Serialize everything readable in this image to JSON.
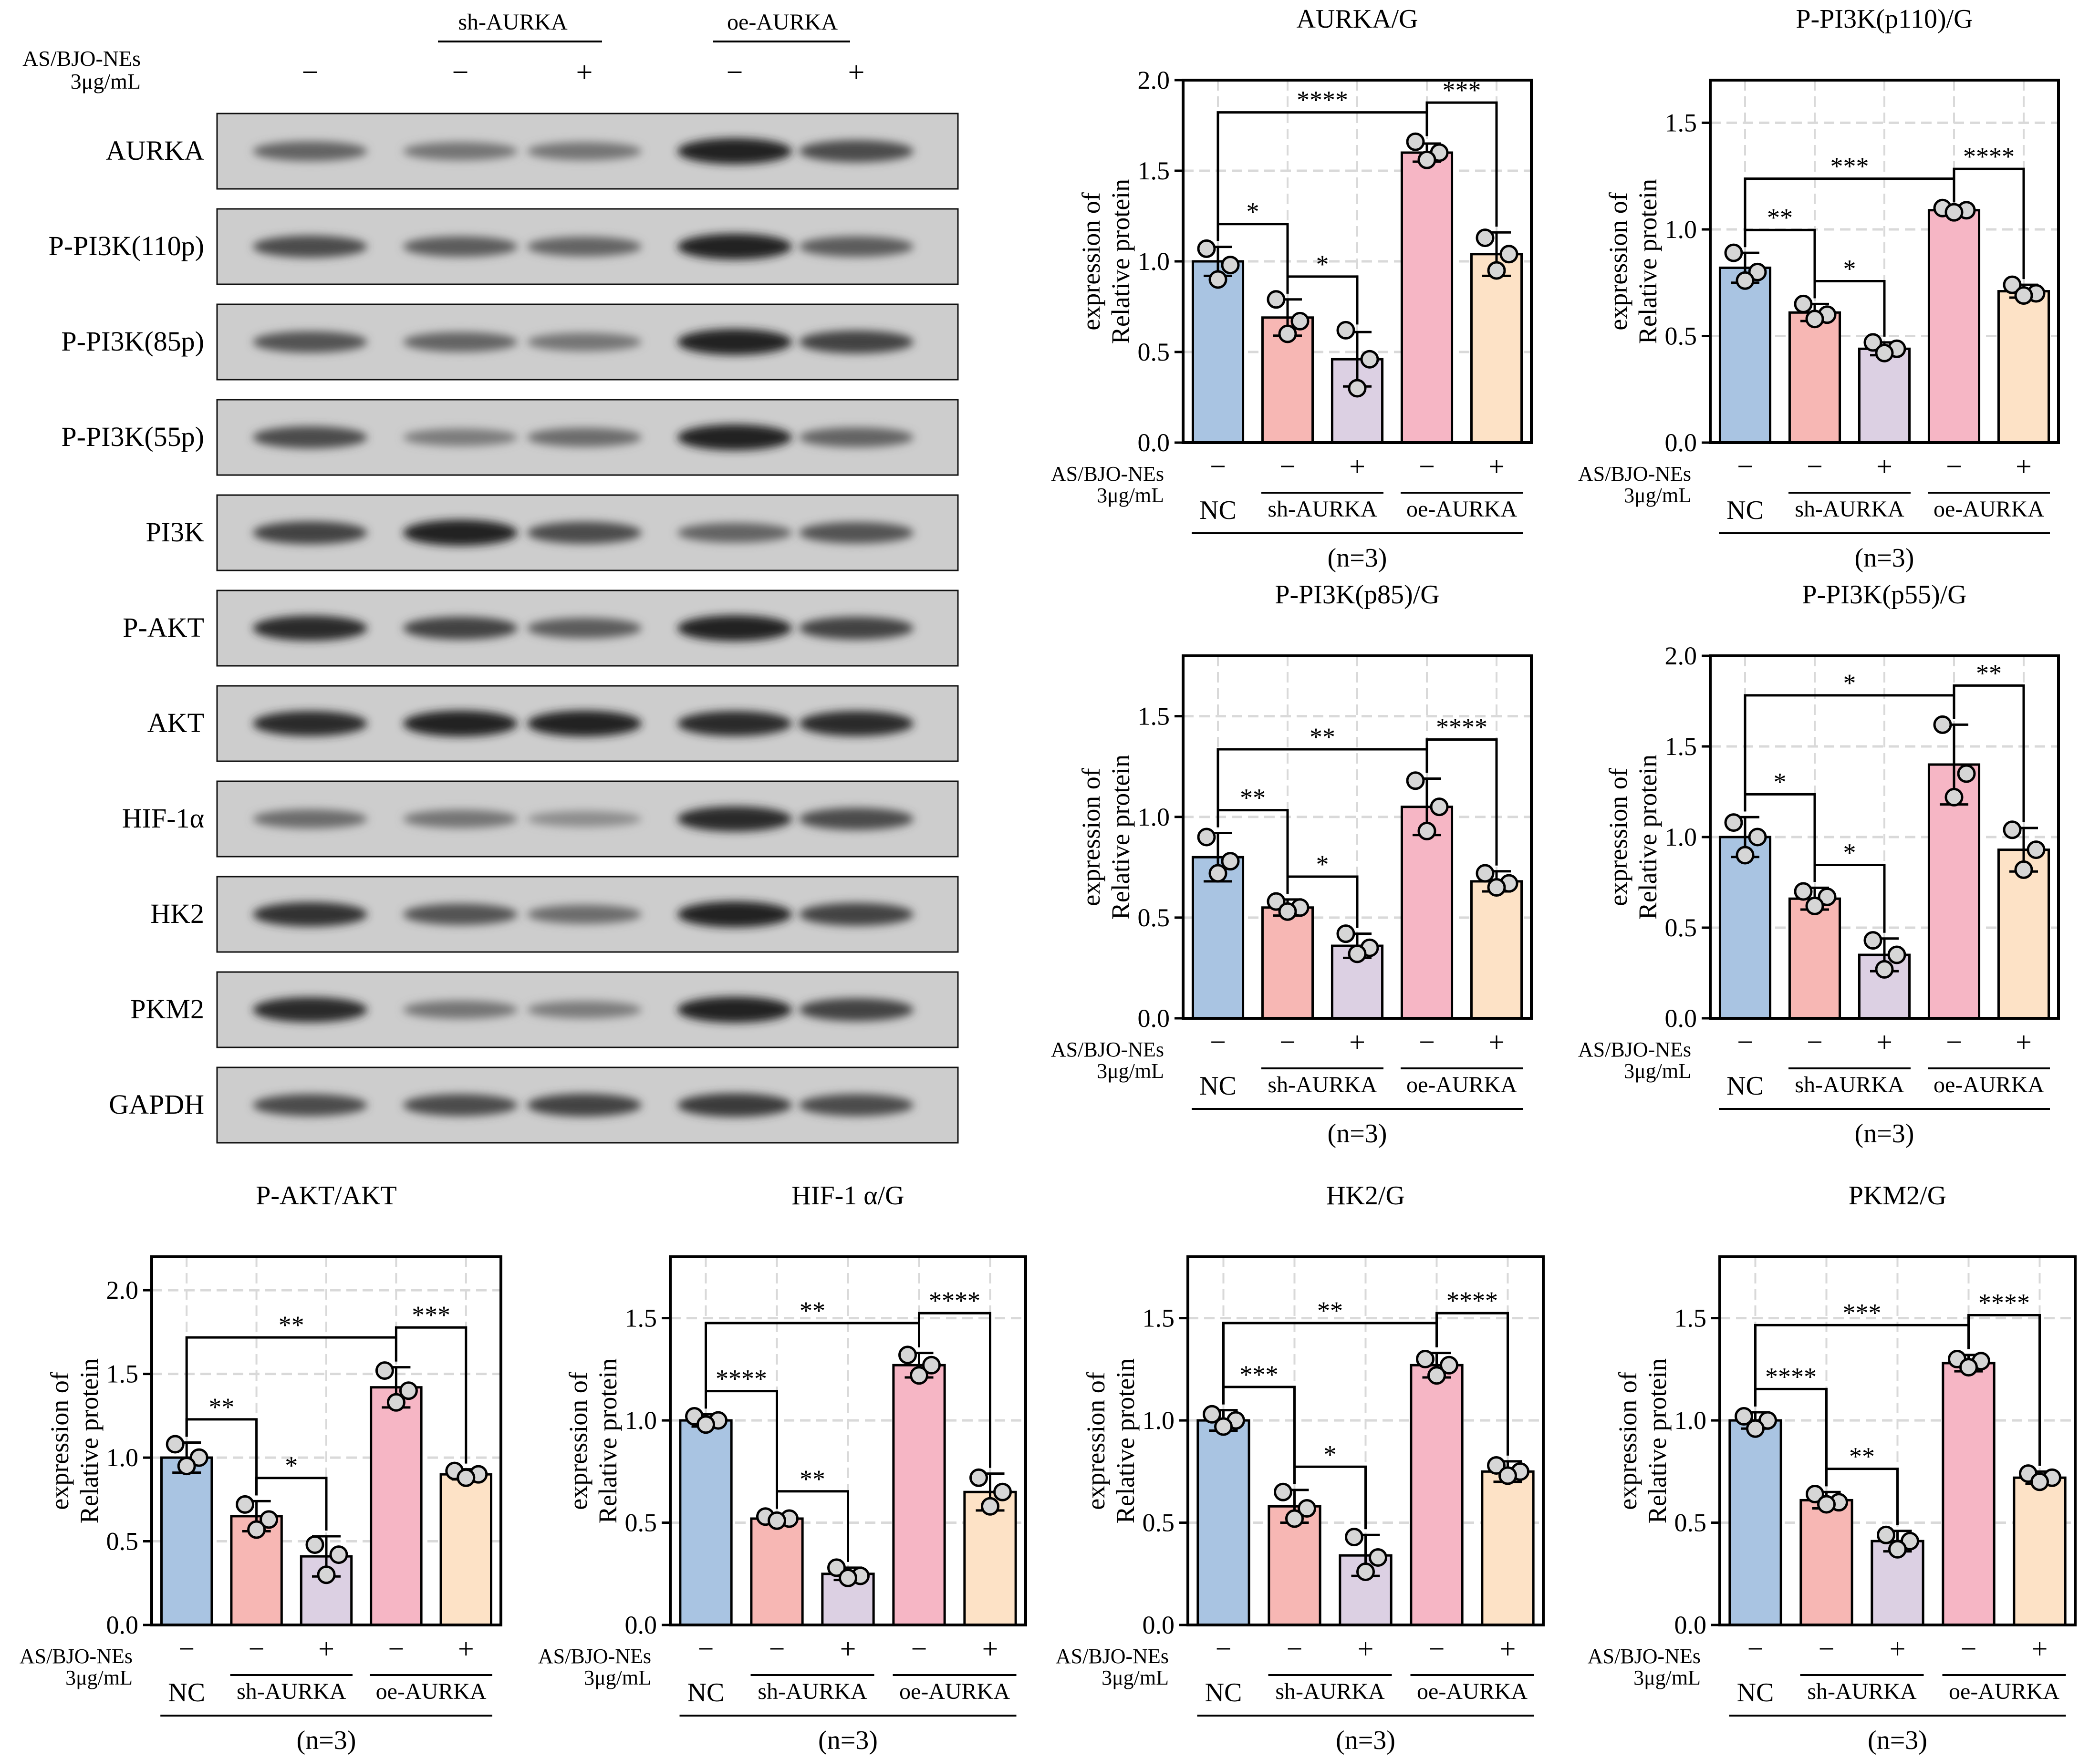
{
  "western_blot": {
    "treatment_label_line1": "AS/BJO-NEs",
    "treatment_label_line2": "3μg/mL",
    "group_headers": [
      "sh-AURKA",
      "oe-AURKA"
    ],
    "lane_signs": [
      "−",
      "−",
      "+",
      "−",
      "+"
    ],
    "bands": [
      {
        "label": "AURKA",
        "intensity": [
          0.55,
          0.45,
          0.45,
          0.95,
          0.7
        ]
      },
      {
        "label": "P-PI3K(110p)",
        "intensity": [
          0.7,
          0.6,
          0.55,
          0.95,
          0.6
        ]
      },
      {
        "label": "P-PI3K(85p)",
        "intensity": [
          0.65,
          0.55,
          0.45,
          0.95,
          0.75
        ]
      },
      {
        "label": "P-PI3K(55p)",
        "intensity": [
          0.7,
          0.4,
          0.5,
          0.95,
          0.55
        ]
      },
      {
        "label": "PI3K",
        "intensity": [
          0.75,
          0.95,
          0.7,
          0.55,
          0.65
        ]
      },
      {
        "label": "P-AKT",
        "intensity": [
          0.9,
          0.75,
          0.6,
          0.95,
          0.75
        ]
      },
      {
        "label": "AKT",
        "intensity": [
          0.9,
          0.95,
          0.95,
          0.9,
          0.9
        ]
      },
      {
        "label": "HIF-1α",
        "intensity": [
          0.5,
          0.45,
          0.3,
          0.9,
          0.7
        ]
      },
      {
        "label": "HK2",
        "intensity": [
          0.85,
          0.65,
          0.5,
          0.95,
          0.75
        ]
      },
      {
        "label": "PKM2",
        "intensity": [
          0.9,
          0.45,
          0.4,
          0.95,
          0.75
        ]
      },
      {
        "label": "GAPDH",
        "intensity": [
          0.7,
          0.7,
          0.75,
          0.8,
          0.7
        ]
      }
    ]
  },
  "colors": {
    "bars": [
      "#a9c4e2",
      "#f7b7b4",
      "#dcd0e3",
      "#f6b6c5",
      "#fde2c6"
    ],
    "grid": "#d9d9d9",
    "axis": "#000000"
  },
  "chart_data": [
    {
      "type": "bar",
      "title": "AURKA/G",
      "ylabel_line1": "expression of",
      "ylabel_line2": "Relative protein",
      "ylim": [
        0,
        2.0
      ],
      "yticks": [
        0.0,
        0.5,
        1.0,
        1.5,
        2.0
      ],
      "ytick_labels": [
        "0.0",
        "0.5",
        "1.0",
        "1.5",
        "2.0"
      ],
      "treatment_label_line1": "AS/BJO-NEs",
      "treatment_label_line2": "3μg/mL",
      "treatment_signs": [
        "−",
        "−",
        "+",
        "−",
        "+"
      ],
      "group_labels": [
        "NC",
        "sh-AURKA",
        "oe-AURKA"
      ],
      "n_label": "(n=3)",
      "values": [
        1.0,
        0.69,
        0.46,
        1.6,
        1.04
      ],
      "errors": [
        0.08,
        0.1,
        0.15,
        0.05,
        0.12
      ],
      "points": [
        [
          1.07,
          0.98,
          0.9
        ],
        [
          0.79,
          0.67,
          0.6
        ],
        [
          0.62,
          0.46,
          0.3
        ],
        [
          1.66,
          1.6,
          1.56
        ],
        [
          1.13,
          1.04,
          0.95
        ]
      ],
      "significance": [
        {
          "from": 0,
          "to": 1,
          "label": "*"
        },
        {
          "from": 1,
          "to": 2,
          "label": "*"
        },
        {
          "from": 0,
          "to": 3,
          "label": "****"
        },
        {
          "from": 3,
          "to": 4,
          "label": "***"
        }
      ]
    },
    {
      "type": "bar",
      "title": "P-PI3K(p110)/G",
      "ylabel_line1": "expression of",
      "ylabel_line2": "Relative protein",
      "ylim": [
        0,
        1.7
      ],
      "yticks": [
        0.0,
        0.5,
        1.0,
        1.5
      ],
      "ytick_labels": [
        "0.0",
        "0.5",
        "1.0",
        "1.5"
      ],
      "treatment_label_line1": "AS/BJO-NEs",
      "treatment_label_line2": "3μg/mL",
      "treatment_signs": [
        "−",
        "−",
        "+",
        "−",
        "+"
      ],
      "group_labels": [
        "NC",
        "sh-AURKA",
        "oe-AURKA"
      ],
      "n_label": "(n=3)",
      "values": [
        0.82,
        0.61,
        0.44,
        1.09,
        0.71
      ],
      "errors": [
        0.07,
        0.04,
        0.03,
        0.01,
        0.03
      ],
      "points": [
        [
          0.89,
          0.8,
          0.76
        ],
        [
          0.65,
          0.6,
          0.58
        ],
        [
          0.47,
          0.44,
          0.42
        ],
        [
          1.1,
          1.09,
          1.08
        ],
        [
          0.74,
          0.7,
          0.69
        ]
      ],
      "significance": [
        {
          "from": 0,
          "to": 1,
          "label": "**"
        },
        {
          "from": 1,
          "to": 2,
          "label": "*"
        },
        {
          "from": 0,
          "to": 3,
          "label": "***"
        },
        {
          "from": 3,
          "to": 4,
          "label": "****"
        }
      ]
    },
    {
      "type": "bar",
      "title": "P-PI3K(p85)/G",
      "ylabel_line1": "expression of",
      "ylabel_line2": "Relative protein",
      "ylim": [
        0,
        1.8
      ],
      "yticks": [
        0.0,
        0.5,
        1.0,
        1.5
      ],
      "ytick_labels": [
        "0.0",
        "0.5",
        "1.0",
        "1.5"
      ],
      "treatment_label_line1": "AS/BJO-NEs",
      "treatment_label_line2": "3μg/mL",
      "treatment_signs": [
        "−",
        "−",
        "+",
        "−",
        "+"
      ],
      "group_labels": [
        "NC",
        "sh-AURKA",
        "oe-AURKA"
      ],
      "n_label": "(n=3)",
      "values": [
        0.8,
        0.55,
        0.36,
        1.05,
        0.68
      ],
      "errors": [
        0.12,
        0.04,
        0.06,
        0.14,
        0.05
      ],
      "points": [
        [
          0.9,
          0.78,
          0.72
        ],
        [
          0.58,
          0.55,
          0.53
        ],
        [
          0.42,
          0.35,
          0.32
        ],
        [
          1.18,
          1.05,
          0.93
        ],
        [
          0.72,
          0.67,
          0.65
        ]
      ],
      "significance": [
        {
          "from": 0,
          "to": 1,
          "label": "**"
        },
        {
          "from": 1,
          "to": 2,
          "label": "*"
        },
        {
          "from": 0,
          "to": 3,
          "label": "**"
        },
        {
          "from": 3,
          "to": 4,
          "label": "****"
        }
      ]
    },
    {
      "type": "bar",
      "title": "P-PI3K(p55)/G",
      "ylabel_line1": "expression of",
      "ylabel_line2": "Relative protein",
      "ylim": [
        0,
        2.0
      ],
      "yticks": [
        0.0,
        0.5,
        1.0,
        1.5,
        2.0
      ],
      "ytick_labels": [
        "0.0",
        "0.5",
        "1.0",
        "1.5",
        "2.0"
      ],
      "treatment_label_line1": "AS/BJO-NEs",
      "treatment_label_line2": "3μg/mL",
      "treatment_signs": [
        "−",
        "−",
        "+",
        "−",
        "+"
      ],
      "group_labels": [
        "NC",
        "sh-AURKA",
        "oe-AURKA"
      ],
      "n_label": "(n=3)",
      "values": [
        1.0,
        0.66,
        0.35,
        1.4,
        0.93
      ],
      "errors": [
        0.11,
        0.06,
        0.09,
        0.22,
        0.12
      ],
      "points": [
        [
          1.08,
          1.0,
          0.9
        ],
        [
          0.7,
          0.67,
          0.62
        ],
        [
          0.43,
          0.35,
          0.27
        ],
        [
          1.62,
          1.35,
          1.22
        ],
        [
          1.04,
          0.93,
          0.82
        ]
      ],
      "significance": [
        {
          "from": 0,
          "to": 1,
          "label": "*"
        },
        {
          "from": 1,
          "to": 2,
          "label": "*"
        },
        {
          "from": 0,
          "to": 3,
          "label": "*"
        },
        {
          "from": 3,
          "to": 4,
          "label": "**"
        }
      ]
    },
    {
      "type": "bar",
      "title": "P-AKT/AKT",
      "ylabel_line1": "expression of",
      "ylabel_line2": "Relative protein",
      "ylim": [
        0,
        2.2
      ],
      "yticks": [
        0.0,
        0.5,
        1.0,
        1.5,
        2.0
      ],
      "ytick_labels": [
        "0.0",
        "0.5",
        "1.0",
        "1.5",
        "2.0"
      ],
      "treatment_label_line1": "AS/BJO-NEs",
      "treatment_label_line2": "3μg/mL",
      "treatment_signs": [
        "−",
        "−",
        "+",
        "−",
        "+"
      ],
      "group_labels": [
        "NC",
        "sh-AURKA",
        "oe-AURKA"
      ],
      "n_label": "(n=3)",
      "values": [
        1.0,
        0.65,
        0.41,
        1.42,
        0.9
      ],
      "errors": [
        0.09,
        0.09,
        0.12,
        0.12,
        0.03
      ],
      "points": [
        [
          1.08,
          1.0,
          0.95
        ],
        [
          0.72,
          0.63,
          0.57
        ],
        [
          0.48,
          0.42,
          0.3
        ],
        [
          1.52,
          1.4,
          1.33
        ],
        [
          0.92,
          0.9,
          0.88
        ]
      ],
      "significance": [
        {
          "from": 0,
          "to": 1,
          "label": "**"
        },
        {
          "from": 1,
          "to": 2,
          "label": "*"
        },
        {
          "from": 0,
          "to": 3,
          "label": "**"
        },
        {
          "from": 3,
          "to": 4,
          "label": "***"
        }
      ]
    },
    {
      "type": "bar",
      "title": "HIF-1 α/G",
      "ylabel_line1": "expression of",
      "ylabel_line2": "Relative protein",
      "ylim": [
        0,
        1.8
      ],
      "yticks": [
        0.0,
        0.5,
        1.0,
        1.5
      ],
      "ytick_labels": [
        "0.0",
        "0.5",
        "1.0",
        "1.5"
      ],
      "treatment_label_line1": "AS/BJO-NEs",
      "treatment_label_line2": "3μg/mL",
      "treatment_signs": [
        "−",
        "−",
        "+",
        "−",
        "+"
      ],
      "group_labels": [
        "NC",
        "sh-AURKA",
        "oe-AURKA"
      ],
      "n_label": "(n=3)",
      "values": [
        1.0,
        0.52,
        0.25,
        1.27,
        0.65
      ],
      "errors": [
        0.03,
        0.02,
        0.03,
        0.06,
        0.09
      ],
      "points": [
        [
          1.02,
          1.0,
          0.98
        ],
        [
          0.53,
          0.52,
          0.51
        ],
        [
          0.28,
          0.24,
          0.23
        ],
        [
          1.32,
          1.27,
          1.22
        ],
        [
          0.72,
          0.65,
          0.58
        ]
      ],
      "significance": [
        {
          "from": 0,
          "to": 1,
          "label": "****"
        },
        {
          "from": 1,
          "to": 2,
          "label": "**"
        },
        {
          "from": 0,
          "to": 3,
          "label": "**"
        },
        {
          "from": 3,
          "to": 4,
          "label": "****"
        }
      ]
    },
    {
      "type": "bar",
      "title": "HK2/G",
      "ylabel_line1": "expression of",
      "ylabel_line2": "Relative protein",
      "ylim": [
        0,
        1.8
      ],
      "yticks": [
        0.0,
        0.5,
        1.0,
        1.5
      ],
      "ytick_labels": [
        "0.0",
        "0.5",
        "1.0",
        "1.5"
      ],
      "treatment_label_line1": "AS/BJO-NEs",
      "treatment_label_line2": "3μg/mL",
      "treatment_signs": [
        "−",
        "−",
        "+",
        "−",
        "+"
      ],
      "group_labels": [
        "NC",
        "sh-AURKA",
        "oe-AURKA"
      ],
      "n_label": "(n=3)",
      "values": [
        1.0,
        0.58,
        0.34,
        1.27,
        0.75
      ],
      "errors": [
        0.05,
        0.08,
        0.1,
        0.06,
        0.05
      ],
      "points": [
        [
          1.03,
          1.0,
          0.97
        ],
        [
          0.65,
          0.57,
          0.52
        ],
        [
          0.43,
          0.33,
          0.26
        ],
        [
          1.3,
          1.27,
          1.22
        ],
        [
          0.78,
          0.75,
          0.73
        ]
      ],
      "significance": [
        {
          "from": 0,
          "to": 1,
          "label": "***"
        },
        {
          "from": 1,
          "to": 2,
          "label": "*"
        },
        {
          "from": 0,
          "to": 3,
          "label": "**"
        },
        {
          "from": 3,
          "to": 4,
          "label": "****"
        }
      ]
    },
    {
      "type": "bar",
      "title": "PKM2/G",
      "ylabel_line1": "expression of",
      "ylabel_line2": "Relative protein",
      "ylim": [
        0,
        1.8
      ],
      "yticks": [
        0.0,
        0.5,
        1.0,
        1.5
      ],
      "ytick_labels": [
        "0.0",
        "0.5",
        "1.0",
        "1.5"
      ],
      "treatment_label_line1": "AS/BJO-NEs",
      "treatment_label_line2": "3μg/mL",
      "treatment_signs": [
        "−",
        "−",
        "+",
        "−",
        "+"
      ],
      "group_labels": [
        "NC",
        "sh-AURKA",
        "oe-AURKA"
      ],
      "n_label": "(n=3)",
      "values": [
        1.0,
        0.61,
        0.41,
        1.28,
        0.72
      ],
      "errors": [
        0.04,
        0.04,
        0.05,
        0.04,
        0.03
      ],
      "points": [
        [
          1.02,
          1.0,
          0.96
        ],
        [
          0.64,
          0.6,
          0.59
        ],
        [
          0.44,
          0.41,
          0.37
        ],
        [
          1.3,
          1.29,
          1.26
        ],
        [
          0.74,
          0.72,
          0.7
        ]
      ],
      "significance": [
        {
          "from": 0,
          "to": 1,
          "label": "****"
        },
        {
          "from": 1,
          "to": 2,
          "label": "**"
        },
        {
          "from": 0,
          "to": 3,
          "label": "***"
        },
        {
          "from": 3,
          "to": 4,
          "label": "****"
        }
      ]
    }
  ]
}
